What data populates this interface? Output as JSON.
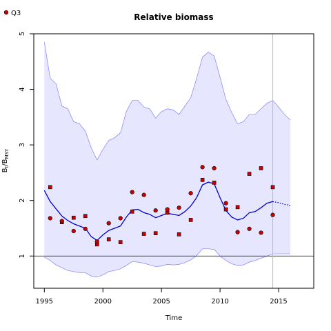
{
  "chart_data": {
    "type": "line",
    "title": "Relative biomass",
    "xlabel": "Time",
    "ylabel": {
      "base": "B",
      "sub1": "t",
      "mid": "/B",
      "sub2": "MSY"
    },
    "xlim": [
      1994.1,
      2018.0
    ],
    "ylim": [
      0.42,
      5.0
    ],
    "x_ticks": [
      1995,
      2000,
      2005,
      2010,
      2015
    ],
    "y_ticks": [
      1,
      2,
      3,
      4,
      5
    ],
    "reference_line_y": 1,
    "vertical_marker_x": 2014.5,
    "legend": {
      "position": "top-left",
      "entries": [
        {
          "label": "Q3",
          "marker": "circle",
          "color": "#cc0000"
        }
      ]
    },
    "colors": {
      "band_fill": "#e6e6ff",
      "band_edge": "#8080ff",
      "median": "#0000cc",
      "points": "#cc0000"
    },
    "series": [
      {
        "name": "upper",
        "role": "ci_upper",
        "x": [
          1995.0,
          1995.5,
          1996.0,
          1996.5,
          1997.0,
          1997.5,
          1998.0,
          1998.5,
          1999.0,
          1999.5,
          2000.0,
          2000.5,
          2001.0,
          2001.5,
          2002.0,
          2002.5,
          2003.0,
          2003.5,
          2004.0,
          2004.5,
          2005.0,
          2005.5,
          2006.0,
          2006.5,
          2007.0,
          2007.5,
          2008.0,
          2008.5,
          2009.0,
          2009.5,
          2010.0,
          2010.5,
          2011.0,
          2011.5,
          2012.0,
          2012.5,
          2013.0,
          2013.5,
          2014.0,
          2014.5,
          2015.0,
          2015.5,
          2016.0
        ],
        "y": [
          4.85,
          4.2,
          4.1,
          3.7,
          3.65,
          3.42,
          3.38,
          3.25,
          2.95,
          2.73,
          2.92,
          3.08,
          3.13,
          3.22,
          3.6,
          3.8,
          3.8,
          3.68,
          3.65,
          3.48,
          3.6,
          3.65,
          3.63,
          3.55,
          3.7,
          3.85,
          4.2,
          4.58,
          4.67,
          4.6,
          4.22,
          3.82,
          3.58,
          3.38,
          3.42,
          3.55,
          3.55,
          3.65,
          3.75,
          3.8,
          3.68,
          3.55,
          3.45
        ]
      },
      {
        "name": "lower",
        "role": "ci_lower",
        "x": [
          1995.0,
          1995.5,
          1996.0,
          1996.5,
          1997.0,
          1997.5,
          1998.0,
          1998.5,
          1999.0,
          1999.5,
          2000.0,
          2000.5,
          2001.0,
          2001.5,
          2002.0,
          2002.5,
          2003.0,
          2003.5,
          2004.0,
          2004.5,
          2005.0,
          2005.5,
          2006.0,
          2006.5,
          2007.0,
          2007.5,
          2008.0,
          2008.5,
          2009.0,
          2009.5,
          2010.0,
          2010.5,
          2011.0,
          2011.5,
          2012.0,
          2012.5,
          2013.0,
          2013.5,
          2014.0,
          2014.5,
          2015.0,
          2015.5,
          2016.0
        ],
        "y": [
          0.98,
          0.92,
          0.84,
          0.79,
          0.74,
          0.72,
          0.7,
          0.7,
          0.64,
          0.62,
          0.66,
          0.72,
          0.74,
          0.77,
          0.83,
          0.9,
          0.89,
          0.87,
          0.84,
          0.81,
          0.82,
          0.85,
          0.84,
          0.85,
          0.88,
          0.93,
          1.01,
          1.13,
          1.13,
          1.12,
          1.0,
          0.92,
          0.86,
          0.83,
          0.84,
          0.89,
          0.92,
          0.96,
          1.0,
          1.04,
          1.04,
          1.04,
          1.04
        ]
      },
      {
        "name": "median",
        "role": "median_fitted",
        "x": [
          1995.0,
          1995.5,
          1996.0,
          1996.5,
          1997.0,
          1997.5,
          1998.0,
          1998.5,
          1999.0,
          1999.5,
          2000.0,
          2000.5,
          2001.0,
          2001.5,
          2002.0,
          2002.5,
          2003.0,
          2003.5,
          2004.0,
          2004.5,
          2005.0,
          2005.5,
          2006.0,
          2006.5,
          2007.0,
          2007.5,
          2008.0,
          2008.5,
          2009.0,
          2009.5,
          2010.0,
          2010.5,
          2011.0,
          2011.5,
          2012.0,
          2012.5,
          2013.0,
          2013.5,
          2014.0,
          2014.5
        ],
        "y": [
          2.18,
          1.98,
          1.85,
          1.72,
          1.64,
          1.58,
          1.54,
          1.5,
          1.35,
          1.28,
          1.38,
          1.46,
          1.5,
          1.54,
          1.7,
          1.83,
          1.84,
          1.78,
          1.75,
          1.69,
          1.73,
          1.77,
          1.75,
          1.73,
          1.8,
          1.9,
          2.05,
          2.28,
          2.33,
          2.3,
          2.05,
          1.82,
          1.7,
          1.65,
          1.68,
          1.78,
          1.8,
          1.87,
          1.95,
          1.98
        ]
      },
      {
        "name": "median_projection",
        "role": "projection",
        "style": "dotted",
        "x": [
          2014.5,
          2015.0,
          2015.5,
          2016.0
        ],
        "y": [
          1.98,
          1.96,
          1.93,
          1.91
        ]
      }
    ],
    "observations": {
      "name": "Q3",
      "x": [
        1995.5,
        1996.5,
        1997.5,
        1998.5,
        1999.5,
        2000.5,
        2001.5,
        2002.5,
        2003.5,
        2004.5,
        2005.5,
        2006.5,
        2007.5,
        2008.5,
        2009.5,
        2010.5,
        2011.5,
        2012.5,
        2013.5,
        2014.5
      ],
      "y": [
        1.68,
        1.63,
        1.45,
        1.49,
        1.26,
        1.59,
        1.68,
        2.15,
        2.1,
        1.82,
        1.84,
        1.87,
        2.13,
        2.6,
        2.58,
        1.95,
        1.43,
        1.49,
        1.42,
        1.74
      ]
    },
    "fitted_points": {
      "x": [
        1995.5,
        1996.5,
        1997.5,
        1998.5,
        1999.5,
        2000.5,
        2001.5,
        2002.5,
        2003.5,
        2004.5,
        2005.5,
        2006.5,
        2007.5,
        2008.5,
        2009.5,
        2010.5,
        2011.5,
        2012.5,
        2013.5,
        2014.5
      ],
      "y": [
        2.24,
        1.61,
        1.69,
        1.72,
        1.21,
        1.3,
        1.25,
        1.8,
        1.4,
        1.41,
        1.78,
        1.39,
        1.65,
        2.37,
        2.32,
        1.84,
        1.88,
        2.48,
        2.58,
        2.24
      ]
    }
  }
}
